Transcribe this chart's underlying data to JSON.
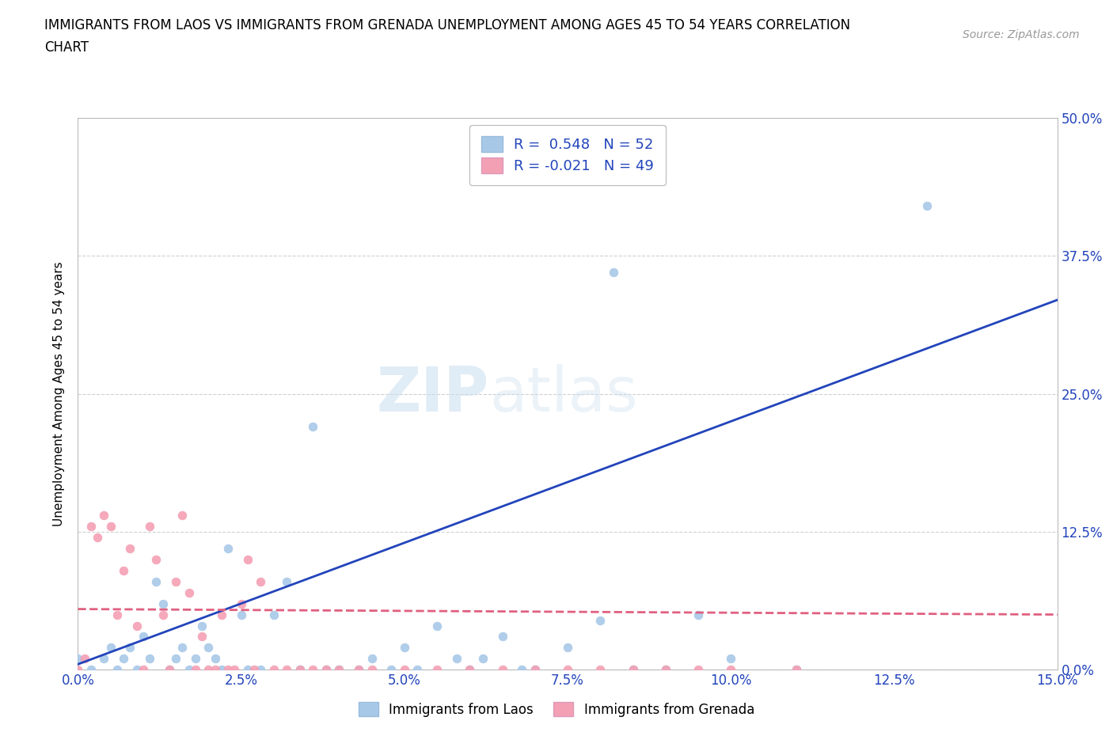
{
  "title_line1": "IMMIGRANTS FROM LAOS VS IMMIGRANTS FROM GRENADA UNEMPLOYMENT AMONG AGES 45 TO 54 YEARS CORRELATION",
  "title_line2": "CHART",
  "source": "Source: ZipAtlas.com",
  "ylabel": "Unemployment Among Ages 45 to 54 years",
  "xlim": [
    0.0,
    0.15
  ],
  "ylim": [
    0.0,
    0.5
  ],
  "laos_color": "#a8c8e8",
  "laos_edge_color": "#7aaace",
  "grenada_color": "#f4a0b4",
  "grenada_edge_color": "#d07090",
  "laos_R": 0.548,
  "laos_N": 52,
  "grenada_R": -0.021,
  "grenada_N": 49,
  "laos_x": [
    0.0,
    0.002,
    0.004,
    0.005,
    0.006,
    0.007,
    0.008,
    0.009,
    0.01,
    0.011,
    0.012,
    0.013,
    0.014,
    0.015,
    0.016,
    0.017,
    0.018,
    0.019,
    0.02,
    0.021,
    0.022,
    0.023,
    0.025,
    0.026,
    0.028,
    0.03,
    0.032,
    0.034,
    0.036,
    0.038,
    0.04,
    0.043,
    0.045,
    0.048,
    0.05,
    0.052,
    0.055,
    0.058,
    0.06,
    0.062,
    0.065,
    0.068,
    0.07,
    0.075,
    0.08,
    0.082,
    0.085,
    0.09,
    0.095,
    0.1,
    0.11,
    0.13
  ],
  "laos_y": [
    0.01,
    0.0,
    0.01,
    0.02,
    0.0,
    0.01,
    0.02,
    0.0,
    0.03,
    0.01,
    0.08,
    0.06,
    0.0,
    0.01,
    0.02,
    0.0,
    0.01,
    0.04,
    0.02,
    0.01,
    0.0,
    0.11,
    0.05,
    0.0,
    0.0,
    0.05,
    0.08,
    0.0,
    0.22,
    0.0,
    0.0,
    0.0,
    0.01,
    0.0,
    0.02,
    0.0,
    0.04,
    0.01,
    0.0,
    0.01,
    0.03,
    0.0,
    0.0,
    0.02,
    0.045,
    0.36,
    0.0,
    0.0,
    0.05,
    0.01,
    0.0,
    0.42
  ],
  "grenada_x": [
    0.0,
    0.001,
    0.002,
    0.003,
    0.004,
    0.005,
    0.006,
    0.007,
    0.008,
    0.009,
    0.01,
    0.011,
    0.012,
    0.013,
    0.014,
    0.015,
    0.016,
    0.017,
    0.018,
    0.019,
    0.02,
    0.021,
    0.022,
    0.023,
    0.024,
    0.025,
    0.026,
    0.027,
    0.028,
    0.03,
    0.032,
    0.034,
    0.036,
    0.038,
    0.04,
    0.043,
    0.045,
    0.05,
    0.055,
    0.06,
    0.065,
    0.07,
    0.075,
    0.08,
    0.085,
    0.09,
    0.095,
    0.1,
    0.11
  ],
  "grenada_y": [
    0.0,
    0.01,
    0.13,
    0.12,
    0.14,
    0.13,
    0.05,
    0.09,
    0.11,
    0.04,
    0.0,
    0.13,
    0.1,
    0.05,
    0.0,
    0.08,
    0.14,
    0.07,
    0.0,
    0.03,
    0.0,
    0.0,
    0.05,
    0.0,
    0.0,
    0.06,
    0.1,
    0.0,
    0.08,
    0.0,
    0.0,
    0.0,
    0.0,
    0.0,
    0.0,
    0.0,
    0.0,
    0.0,
    0.0,
    0.0,
    0.0,
    0.0,
    0.0,
    0.0,
    0.0,
    0.0,
    0.0,
    0.0,
    0.0
  ],
  "laos_trend_x": [
    0.0,
    0.15
  ],
  "laos_trend_y": [
    0.005,
    0.335
  ],
  "grenada_trend_x": [
    0.0,
    0.15
  ],
  "grenada_trend_y": [
    0.055,
    0.05
  ],
  "watermark_part1": "ZIP",
  "watermark_part2": "atlas",
  "grid_color": "#d0d0d0",
  "grid_linestyle": "--",
  "legend_text_color": "#2244bb",
  "trendline_laos_color": "#2244bb",
  "trendline_grenada_color": "#e06080",
  "background_color": "#ffffff",
  "x_tick_vals": [
    0.0,
    0.025,
    0.05,
    0.075,
    0.1,
    0.125,
    0.15
  ],
  "y_tick_vals": [
    0.0,
    0.125,
    0.25,
    0.375,
    0.5
  ],
  "tick_color": "#2244bb",
  "title_fontsize": 12,
  "axis_fontsize": 12,
  "legend_fontsize": 13,
  "marker_size": 60
}
